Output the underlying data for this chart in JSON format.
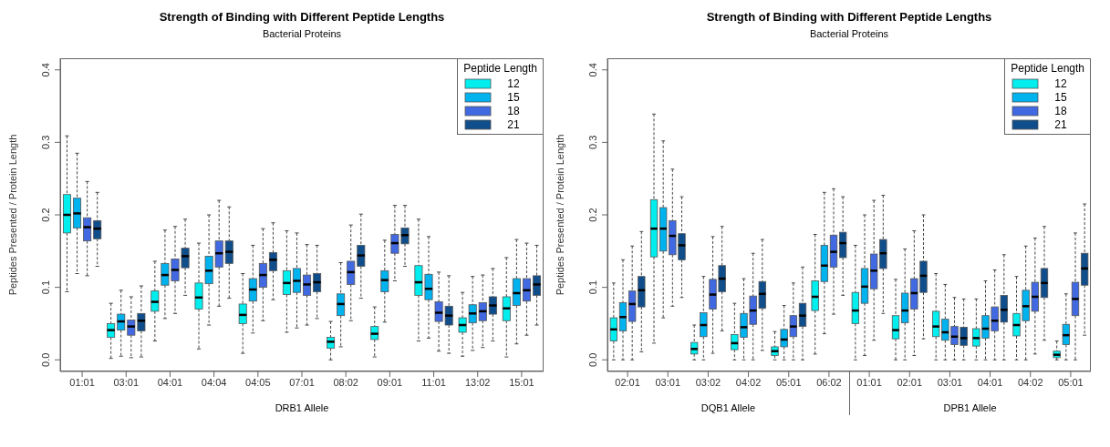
{
  "chart_data": [
    {
      "type": "box",
      "title": "Strength of Binding with Different Peptide Lengths",
      "subtitle": "Bacterial Proteins",
      "xlabel": "DRB1 Allele",
      "ylabel": "Peptides Presented / Protein Length",
      "legend_title": "Peptide Length",
      "legend": "top right",
      "categories": [
        "01:01",
        "03:01",
        "04:01",
        "04:04",
        "04:05",
        "07:01",
        "08:02",
        "09:01",
        "11:01",
        "13:02",
        "15:01"
      ],
      "ylim": [
        -0.016,
        0.416
      ],
      "yticks": [
        {
          "value": 0,
          "label": "0.0"
        },
        0.1,
        0.2,
        0.3,
        0.4
      ],
      "series": [
        {
          "name": "12",
          "color": "#00eeee",
          "boxes": [
            {
              "low": 0.094,
              "q1": 0.175,
              "median": 0.2,
              "q3": 0.228,
              "high": 0.309
            },
            {
              "low": 0.002,
              "q1": 0.031,
              "median": 0.041,
              "q3": 0.05,
              "high": 0.078
            },
            {
              "low": 0.026,
              "q1": 0.067,
              "median": 0.08,
              "q3": 0.095,
              "high": 0.136
            },
            {
              "low": 0.015,
              "q1": 0.07,
              "median": 0.086,
              "q3": 0.106,
              "high": 0.161
            },
            {
              "low": 0.009,
              "q1": 0.05,
              "median": 0.062,
              "q3": 0.077,
              "high": 0.119
            },
            {
              "low": 0.038,
              "q1": 0.09,
              "median": 0.106,
              "q3": 0.123,
              "high": 0.178
            },
            {
              "low": 0.0,
              "q1": 0.016,
              "median": 0.025,
              "q3": 0.031,
              "high": 0.053
            },
            {
              "low": 0.004,
              "q1": 0.028,
              "median": 0.036,
              "q3": 0.046,
              "high": 0.073
            },
            {
              "low": 0.026,
              "q1": 0.089,
              "median": 0.107,
              "q3": 0.13,
              "high": 0.194
            },
            {
              "low": 0.005,
              "q1": 0.038,
              "median": 0.048,
              "q3": 0.058,
              "high": 0.093
            },
            {
              "low": 0.004,
              "q1": 0.054,
              "median": 0.071,
              "q3": 0.087,
              "high": 0.141
            }
          ]
        },
        {
          "name": "15",
          "color": "#00b2ee",
          "boxes": [
            {
              "low": 0.119,
              "q1": 0.182,
              "median": 0.202,
              "q3": 0.223,
              "high": 0.285
            },
            {
              "low": 0.005,
              "q1": 0.041,
              "median": 0.053,
              "q3": 0.063,
              "high": 0.096
            },
            {
              "low": 0.057,
              "q1": 0.103,
              "median": 0.117,
              "q3": 0.133,
              "high": 0.179
            },
            {
              "low": 0.048,
              "q1": 0.105,
              "median": 0.123,
              "q3": 0.143,
              "high": 0.2
            },
            {
              "low": 0.037,
              "q1": 0.081,
              "median": 0.097,
              "q3": 0.112,
              "high": 0.158
            },
            {
              "low": 0.044,
              "q1": 0.093,
              "median": 0.109,
              "q3": 0.126,
              "high": 0.175
            },
            {
              "low": 0.018,
              "q1": 0.061,
              "median": 0.077,
              "q3": 0.091,
              "high": 0.134
            },
            {
              "low": 0.052,
              "q1": 0.094,
              "median": 0.11,
              "q3": 0.123,
              "high": 0.165
            },
            {
              "low": 0.03,
              "q1": 0.083,
              "median": 0.098,
              "q3": 0.118,
              "high": 0.17
            },
            {
              "low": 0.013,
              "q1": 0.051,
              "median": 0.064,
              "q3": 0.076,
              "high": 0.115
            },
            {
              "low": 0.022,
              "q1": 0.075,
              "median": 0.092,
              "q3": 0.112,
              "high": 0.166
            }
          ]
        },
        {
          "name": "18",
          "color": "#4169e1",
          "boxes": [
            {
              "low": 0.116,
              "q1": 0.164,
              "median": 0.183,
              "q3": 0.196,
              "high": 0.246
            },
            {
              "low": 0.003,
              "q1": 0.034,
              "median": 0.046,
              "q3": 0.055,
              "high": 0.087
            },
            {
              "low": 0.064,
              "q1": 0.109,
              "median": 0.124,
              "q3": 0.139,
              "high": 0.184
            },
            {
              "low": 0.074,
              "q1": 0.128,
              "median": 0.147,
              "q3": 0.164,
              "high": 0.22
            },
            {
              "low": 0.054,
              "q1": 0.1,
              "median": 0.117,
              "q3": 0.133,
              "high": 0.181
            },
            {
              "low": 0.048,
              "q1": 0.089,
              "median": 0.104,
              "q3": 0.117,
              "high": 0.159
            },
            {
              "low": 0.054,
              "q1": 0.104,
              "median": 0.121,
              "q3": 0.136,
              "high": 0.186
            },
            {
              "low": 0.109,
              "q1": 0.147,
              "median": 0.161,
              "q3": 0.173,
              "high": 0.213
            },
            {
              "low": 0.012,
              "q1": 0.053,
              "median": 0.065,
              "q3": 0.08,
              "high": 0.121
            },
            {
              "low": 0.017,
              "q1": 0.054,
              "median": 0.067,
              "q3": 0.079,
              "high": 0.117
            },
            {
              "low": 0.034,
              "q1": 0.081,
              "median": 0.096,
              "q3": 0.112,
              "high": 0.161
            }
          ]
        },
        {
          "name": "21",
          "color": "#104e8b",
          "boxes": [
            {
              "low": 0.129,
              "q1": 0.167,
              "median": 0.181,
              "q3": 0.192,
              "high": 0.231
            },
            {
              "low": 0.004,
              "q1": 0.04,
              "median": 0.054,
              "q3": 0.064,
              "high": 0.102
            },
            {
              "low": 0.089,
              "q1": 0.127,
              "median": 0.143,
              "q3": 0.154,
              "high": 0.194
            },
            {
              "low": 0.085,
              "q1": 0.133,
              "median": 0.149,
              "q3": 0.164,
              "high": 0.211
            },
            {
              "low": 0.083,
              "q1": 0.123,
              "median": 0.138,
              "q3": 0.148,
              "high": 0.189
            },
            {
              "low": 0.057,
              "q1": 0.094,
              "median": 0.107,
              "q3": 0.119,
              "high": 0.158
            },
            {
              "low": 0.085,
              "q1": 0.129,
              "median": 0.144,
              "q3": 0.158,
              "high": 0.201
            },
            {
              "low": 0.129,
              "q1": 0.16,
              "median": 0.172,
              "q3": 0.182,
              "high": 0.213
            },
            {
              "low": 0.009,
              "q1": 0.048,
              "median": 0.061,
              "q3": 0.074,
              "high": 0.116
            },
            {
              "low": 0.026,
              "q1": 0.063,
              "median": 0.075,
              "q3": 0.087,
              "high": 0.126
            },
            {
              "low": 0.048,
              "q1": 0.089,
              "median": 0.104,
              "q3": 0.116,
              "high": 0.158
            }
          ]
        }
      ]
    },
    {
      "type": "box",
      "title": "Strength of Binding with Different Peptide Lengths",
      "subtitle": "Bacterial Proteins",
      "xlabel": "DQB1 Allele",
      "annotations": [
        "DPB1 Allele"
      ],
      "ylabel": "Peptides Presented / Protein Length",
      "legend_title": "Peptide Length",
      "legend": "top right",
      "categories": [
        "02:01",
        "03:01",
        "03:02",
        "04:02",
        "05:01",
        "06:02",
        "01:01",
        "02:01",
        "03:01",
        "04:01",
        "04:02",
        "05:01"
      ],
      "ylim": [
        -0.016,
        0.416
      ],
      "yticks": [
        {
          "value": 0,
          "label": "0.0"
        },
        0.1,
        0.2,
        0.3,
        0.4
      ],
      "series": [
        {
          "name": "12",
          "color": "#00eeee",
          "boxes": [
            {
              "low": 0.0,
              "q1": 0.026,
              "median": 0.042,
              "q3": 0.058,
              "high": 0.106
            },
            {
              "low": 0.023,
              "q1": 0.142,
              "median": 0.181,
              "q3": 0.221,
              "high": 0.339
            },
            {
              "low": 0.0,
              "q1": 0.008,
              "median": 0.015,
              "q3": 0.024,
              "high": 0.048
            },
            {
              "low": 0.0,
              "q1": 0.014,
              "median": 0.023,
              "q3": 0.035,
              "high": 0.078
            },
            {
              "low": 0.0,
              "q1": 0.006,
              "median": 0.012,
              "q3": 0.018,
              "high": 0.039
            },
            {
              "low": 0.008,
              "q1": 0.068,
              "median": 0.087,
              "q3": 0.109,
              "high": 0.173
            },
            {
              "low": 0.0,
              "q1": 0.05,
              "median": 0.068,
              "q3": 0.093,
              "high": 0.158
            },
            {
              "low": 0.0,
              "q1": 0.029,
              "median": 0.041,
              "q3": 0.061,
              "high": 0.111
            },
            {
              "low": 0.0,
              "q1": 0.032,
              "median": 0.046,
              "q3": 0.067,
              "high": 0.119
            },
            {
              "low": 0.0,
              "q1": 0.019,
              "median": 0.03,
              "q3": 0.043,
              "high": 0.084
            },
            {
              "low": 0.0,
              "q1": 0.033,
              "median": 0.048,
              "q3": 0.064,
              "high": 0.115
            },
            {
              "low": 0.0,
              "q1": 0.003,
              "median": 0.007,
              "q3": 0.012,
              "high": 0.026
            }
          ]
        },
        {
          "name": "15",
          "color": "#00b2ee",
          "boxes": [
            {
              "low": 0.0,
              "q1": 0.04,
              "median": 0.059,
              "q3": 0.079,
              "high": 0.138
            },
            {
              "low": 0.058,
              "q1": 0.15,
              "median": 0.181,
              "q3": 0.21,
              "high": 0.302
            },
            {
              "low": 0.0,
              "q1": 0.032,
              "median": 0.048,
              "q3": 0.065,
              "high": 0.115
            },
            {
              "low": 0.0,
              "q1": 0.031,
              "median": 0.045,
              "q3": 0.064,
              "high": 0.112
            },
            {
              "low": 0.0,
              "q1": 0.018,
              "median": 0.028,
              "q3": 0.042,
              "high": 0.075
            },
            {
              "low": 0.036,
              "q1": 0.108,
              "median": 0.13,
              "q3": 0.158,
              "high": 0.231
            },
            {
              "low": 0.006,
              "q1": 0.078,
              "median": 0.101,
              "q3": 0.126,
              "high": 0.2
            },
            {
              "low": 0.0,
              "q1": 0.051,
              "median": 0.068,
              "q3": 0.092,
              "high": 0.153
            },
            {
              "low": 0.0,
              "q1": 0.027,
              "median": 0.038,
              "q3": 0.056,
              "high": 0.104
            },
            {
              "low": 0.0,
              "q1": 0.03,
              "median": 0.043,
              "q3": 0.061,
              "high": 0.109
            },
            {
              "low": 0.0,
              "q1": 0.054,
              "median": 0.074,
              "q3": 0.096,
              "high": 0.157
            },
            {
              "low": 0.0,
              "q1": 0.021,
              "median": 0.034,
              "q3": 0.049,
              "high": 0.091
            }
          ]
        },
        {
          "name": "18",
          "color": "#4169e1",
          "boxes": [
            {
              "low": 0.0,
              "q1": 0.053,
              "median": 0.077,
              "q3": 0.095,
              "high": 0.157
            },
            {
              "low": 0.074,
              "q1": 0.145,
              "median": 0.171,
              "q3": 0.192,
              "high": 0.263
            },
            {
              "low": 0.009,
              "q1": 0.07,
              "median": 0.09,
              "q3": 0.111,
              "high": 0.17
            },
            {
              "low": 0.0,
              "q1": 0.049,
              "median": 0.068,
              "q3": 0.088,
              "high": 0.147
            },
            {
              "low": 0.0,
              "q1": 0.032,
              "median": 0.046,
              "q3": 0.061,
              "high": 0.106
            },
            {
              "low": 0.063,
              "q1": 0.128,
              "median": 0.149,
              "q3": 0.172,
              "high": 0.236
            },
            {
              "low": 0.027,
              "q1": 0.098,
              "median": 0.123,
              "q3": 0.146,
              "high": 0.22
            },
            {
              "low": 0.006,
              "q1": 0.07,
              "median": 0.092,
              "q3": 0.112,
              "high": 0.178
            },
            {
              "low": 0.0,
              "q1": 0.021,
              "median": 0.032,
              "q3": 0.046,
              "high": 0.086
            },
            {
              "low": 0.0,
              "q1": 0.04,
              "median": 0.054,
              "q3": 0.073,
              "high": 0.124
            },
            {
              "low": 0.008,
              "q1": 0.067,
              "median": 0.087,
              "q3": 0.107,
              "high": 0.168
            },
            {
              "low": 0.0,
              "q1": 0.061,
              "median": 0.084,
              "q3": 0.107,
              "high": 0.175
            }
          ]
        },
        {
          "name": "21",
          "color": "#104e8b",
          "boxes": [
            {
              "low": 0.011,
              "q1": 0.073,
              "median": 0.096,
              "q3": 0.115,
              "high": 0.177
            },
            {
              "low": 0.086,
              "q1": 0.138,
              "median": 0.158,
              "q3": 0.174,
              "high": 0.225
            },
            {
              "low": 0.04,
              "q1": 0.094,
              "median": 0.112,
              "q3": 0.13,
              "high": 0.184
            },
            {
              "low": 0.013,
              "q1": 0.071,
              "median": 0.091,
              "q3": 0.108,
              "high": 0.166
            },
            {
              "low": 0.0,
              "q1": 0.046,
              "median": 0.061,
              "q3": 0.078,
              "high": 0.128
            },
            {
              "low": 0.089,
              "q1": 0.141,
              "median": 0.161,
              "q3": 0.176,
              "high": 0.225
            },
            {
              "low": 0.064,
              "q1": 0.126,
              "median": 0.147,
              "q3": 0.166,
              "high": 0.227
            },
            {
              "low": 0.029,
              "q1": 0.093,
              "median": 0.116,
              "q3": 0.136,
              "high": 0.2
            },
            {
              "low": 0.0,
              "q1": 0.02,
              "median": 0.03,
              "q3": 0.045,
              "high": 0.084
            },
            {
              "low": 0.0,
              "q1": 0.052,
              "median": 0.069,
              "q3": 0.089,
              "high": 0.145
            },
            {
              "low": 0.027,
              "q1": 0.086,
              "median": 0.106,
              "q3": 0.126,
              "high": 0.184
            },
            {
              "low": 0.034,
              "q1": 0.103,
              "median": 0.126,
              "q3": 0.147,
              "high": 0.215
            }
          ]
        }
      ]
    }
  ]
}
